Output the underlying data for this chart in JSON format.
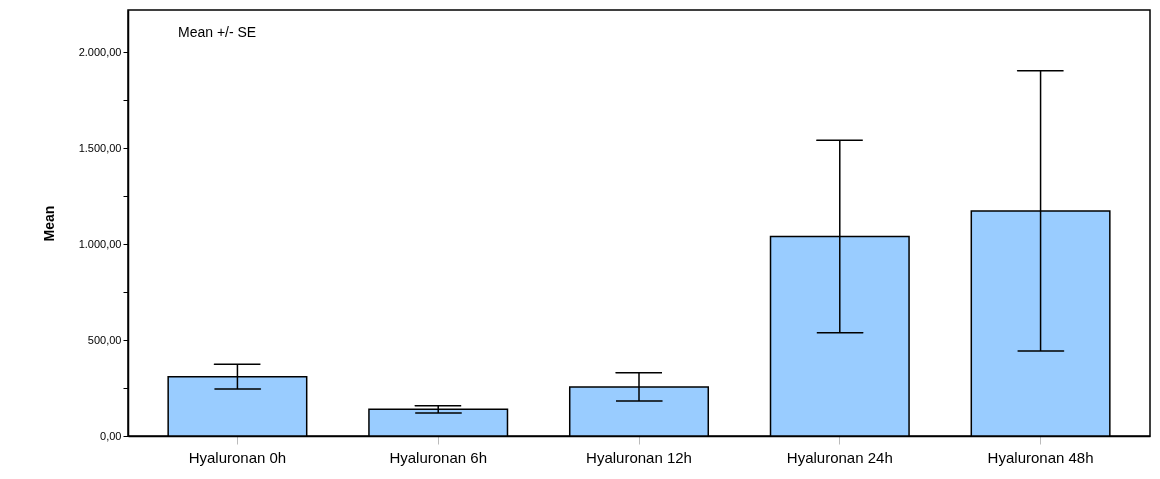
{
  "chart_data": {
    "type": "bar",
    "ylabel": "Mean",
    "annotations": [
      "Mean +/- SE"
    ],
    "categories": [
      "Hyaluronan 0h",
      "Hyaluronan 6h",
      "Hyaluronan 12h",
      "Hyaluronan 24h",
      "Hyaluronan 48h"
    ],
    "values": [
      309,
      139,
      256,
      1039,
      1173
    ],
    "errors": [
      [
        245,
        374
      ],
      [
        120,
        157
      ],
      [
        183,
        329
      ],
      [
        538,
        1541
      ],
      [
        443,
        1904
      ]
    ],
    "color": "#99ccff",
    "ylim": [
      0,
      2220
    ],
    "yticks": [
      {
        "value": 0,
        "label": "0,00"
      },
      {
        "value": 250,
        "label": null
      },
      {
        "value": 500,
        "label": "500,00"
      },
      {
        "value": 750,
        "label": null
      },
      {
        "value": 1000,
        "label": "1.000,00"
      },
      {
        "value": 1250,
        "label": null
      },
      {
        "value": 1500,
        "label": "1.500,00"
      },
      {
        "value": 1750,
        "label": null
      },
      {
        "value": 2000,
        "label": "2.000,00"
      }
    ],
    "grid": false
  }
}
